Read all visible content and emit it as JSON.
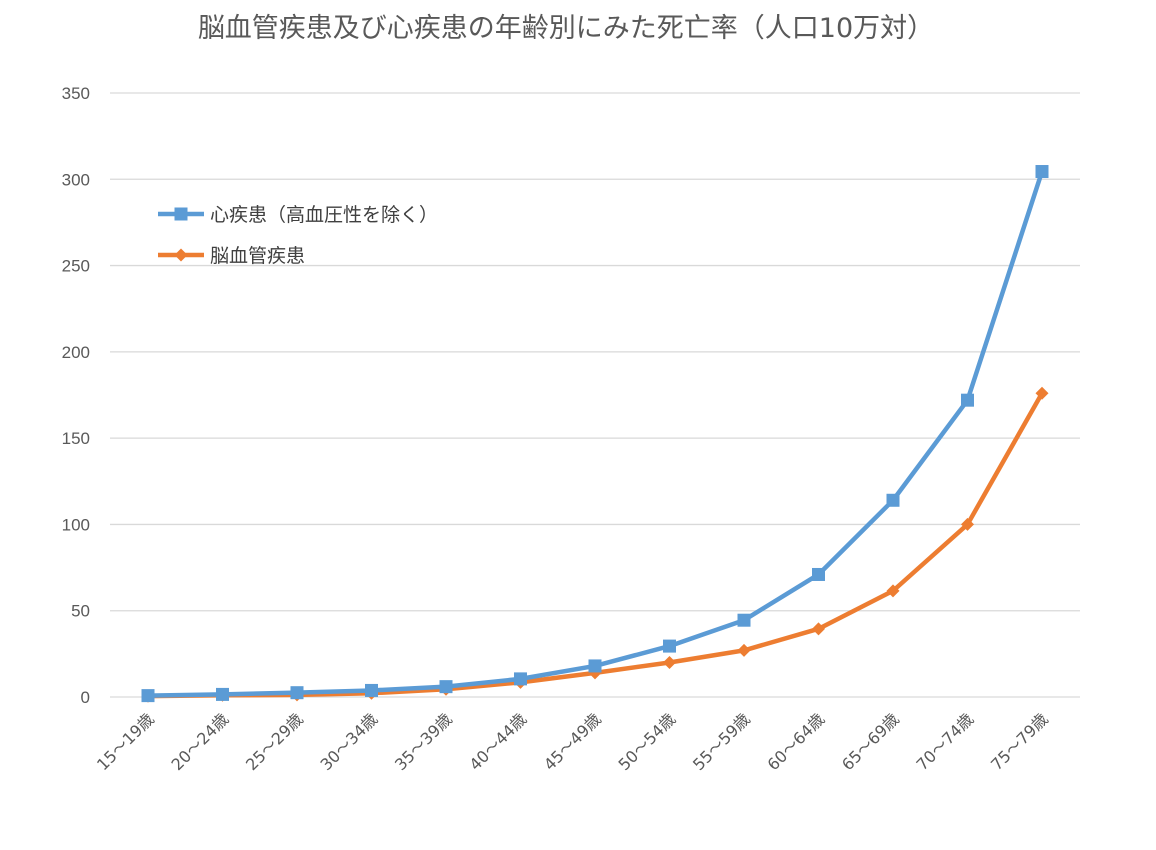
{
  "chart_data": {
    "type": "line",
    "title": "脳血管疾患及び心疾患の年齢別にみた死亡率（人口10万対）",
    "xlabel": "",
    "ylabel": "",
    "ylim": [
      0,
      350
    ],
    "yticks": [
      0,
      50,
      100,
      150,
      200,
      250,
      300,
      350
    ],
    "grid": true,
    "legend_position": "top-left",
    "categories": [
      "15～19歳",
      "20～24歳",
      "25～29歳",
      "30～34歳",
      "35～39歳",
      "40～44歳",
      "45～49歳",
      "50～54歳",
      "55～59歳",
      "60～64歳",
      "65～69歳",
      "70～74歳",
      "75～79歳"
    ],
    "series": [
      {
        "name": "心疾患（高血圧性を除く）",
        "color": "#5b9bd5",
        "marker": "square",
        "values": [
          0.8,
          1.5,
          2.5,
          3.8,
          6.0,
          10.5,
          18.0,
          29.5,
          44.5,
          71.0,
          114.0,
          172.0,
          304.5
        ]
      },
      {
        "name": "脳血管疾患",
        "color": "#ed7d31",
        "marker": "diamond",
        "values": [
          0.5,
          1.0,
          1.2,
          2.2,
          4.5,
          8.5,
          14.0,
          20.0,
          27.0,
          39.5,
          61.5,
          100.0,
          176.0
        ]
      }
    ]
  }
}
